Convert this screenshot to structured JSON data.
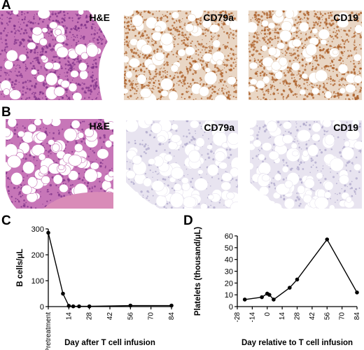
{
  "panels": {
    "A": {
      "letter": "A",
      "images": [
        {
          "label": "H&E",
          "stain": "he_dense"
        },
        {
          "label": "CD79a",
          "stain": "brown_dense"
        },
        {
          "label": "CD19",
          "stain": "brown_dense"
        }
      ]
    },
    "B": {
      "letter": "B",
      "images": [
        {
          "label": "H&E",
          "stain": "he_sparse"
        },
        {
          "label": "CD79a",
          "stain": "pale"
        },
        {
          "label": "CD19",
          "stain": "pale"
        }
      ]
    },
    "C": {
      "letter": "C"
    },
    "D": {
      "letter": "D"
    }
  },
  "colors": {
    "he_bg": "#c776b8",
    "he_dark": "#7a2e86",
    "brown": "#a8581f",
    "brown_light": "#e9d6c4",
    "pale_bg": "#e8e4f0",
    "pale_dots": "#a9a2c8",
    "fat": "#ffffff",
    "line": "#000000"
  },
  "chart_data": [
    {
      "type": "line",
      "x": [
        0,
        10,
        14,
        17,
        21,
        28,
        56,
        84
      ],
      "values": [
        285,
        50,
        3,
        1,
        1,
        1,
        4,
        4
      ],
      "xlabel": "Day after T cell infusion",
      "ylabel": "B cells/μL",
      "ylim": [
        0,
        300
      ],
      "yticks": [
        0,
        100,
        200,
        300
      ],
      "xticks": [
        0,
        14,
        28,
        42,
        56,
        70,
        84
      ],
      "xtick_labels": [
        "Pretreatment",
        "14",
        "28",
        "42",
        "56",
        "70",
        "84"
      ]
    },
    {
      "type": "line",
      "x": [
        -21,
        -5,
        0,
        2,
        6,
        21,
        28,
        56,
        84
      ],
      "values": [
        6,
        8,
        11,
        10,
        6,
        16,
        23,
        57,
        12
      ],
      "xlabel": "Day relative to T cell infusion",
      "ylabel": "Platelets (thousand/μL)",
      "ylim": [
        0,
        60
      ],
      "yticks": [
        0,
        10,
        20,
        30,
        40,
        50,
        60
      ],
      "xticks": [
        -28,
        -14,
        0,
        14,
        28,
        42,
        56,
        70,
        84
      ],
      "xtick_labels": [
        "-28",
        "-14",
        "0",
        "14",
        "28",
        "42",
        "56",
        "70",
        "84"
      ]
    }
  ]
}
